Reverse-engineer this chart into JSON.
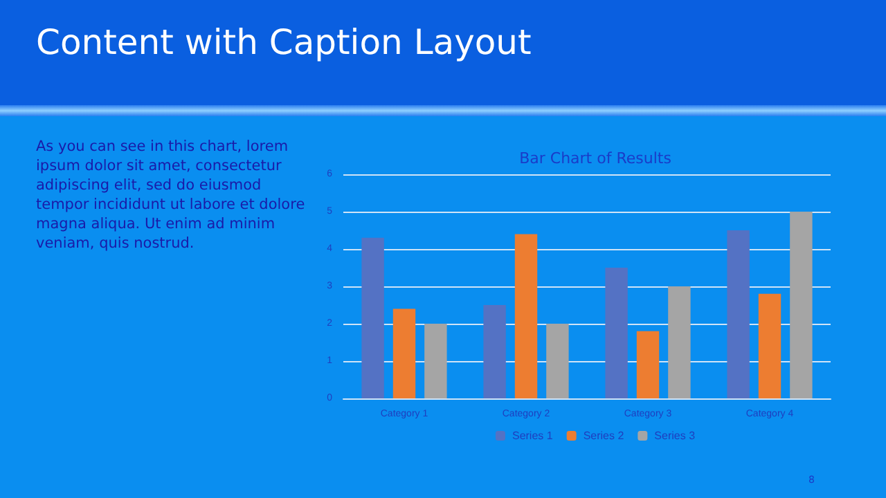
{
  "chart_data": {
    "type": "bar",
    "title": "Bar Chart of Results",
    "categories": [
      "Category 1",
      "Category 2",
      "Category 3",
      "Category 4"
    ],
    "series": [
      {
        "name": "Series 1",
        "color": "#5472c4",
        "values": [
          4.3,
          2.5,
          3.5,
          4.5
        ]
      },
      {
        "name": "Series 2",
        "color": "#ed7d31",
        "values": [
          2.4,
          4.4,
          1.8,
          2.8
        ]
      },
      {
        "name": "Series 3",
        "color": "#a5a5a5",
        "values": [
          2,
          2,
          3,
          5
        ]
      }
    ],
    "ylim": [
      0,
      6
    ],
    "yticks": [
      0,
      1,
      2,
      3,
      4,
      5,
      6
    ],
    "grid": "y",
    "legend": "bottom",
    "annotations": [
      "Content with Caption Layout",
      "As you can see in this chart, lorem ipsum dolor sit amet, consectetur adipiscing elit, sed do eiusmod tempor incididunt ut labore et dolore magna aliqua. Ut enim ad minim veniam, quis nostrud.",
      "8"
    ]
  }
}
